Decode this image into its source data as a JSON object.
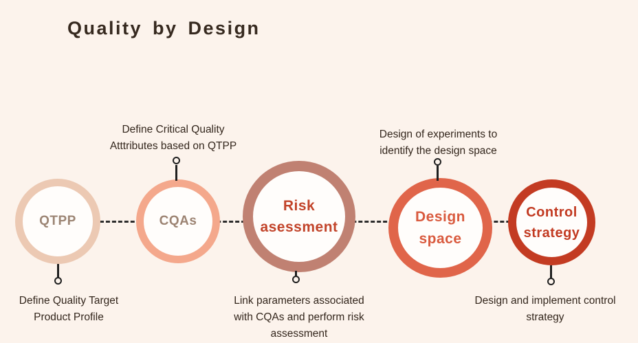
{
  "title": "Quality by Design",
  "colors": {
    "background": "#fcf3ec",
    "title_text": "#36291f",
    "caption_text": "#33261c",
    "connector": "#2b2b2b",
    "pin": "#1f1f1f"
  },
  "steps": [
    {
      "label": "QTPP",
      "ring_color": "#ecc9b3",
      "label_color": "#9c8574",
      "caption": "Define Quality Target\nProduct Profile",
      "caption_position": "below"
    },
    {
      "label": "CQAs",
      "ring_color": "#f4a88c",
      "label_color": "#9c8372",
      "caption": "Define Critical Quality\nAtttributes based on QTPP",
      "caption_position": "above"
    },
    {
      "label": "Risk\nasessment",
      "ring_color": "#c08172",
      "label_color": "#c2442a",
      "caption": "Link parameters associated\nwith CQAs and perform risk\nassessment",
      "caption_position": "below"
    },
    {
      "label": "Design\nspace",
      "ring_color": "#e0654a",
      "label_color": "#d95a3e",
      "caption": "Design of experiments to\nidentify the design space",
      "caption_position": "above"
    },
    {
      "label": "Control\nstrategy",
      "ring_color": "#c33b22",
      "label_color": "#c23a21",
      "caption": "Design and implement control\nstrategy",
      "caption_position": "below"
    }
  ]
}
